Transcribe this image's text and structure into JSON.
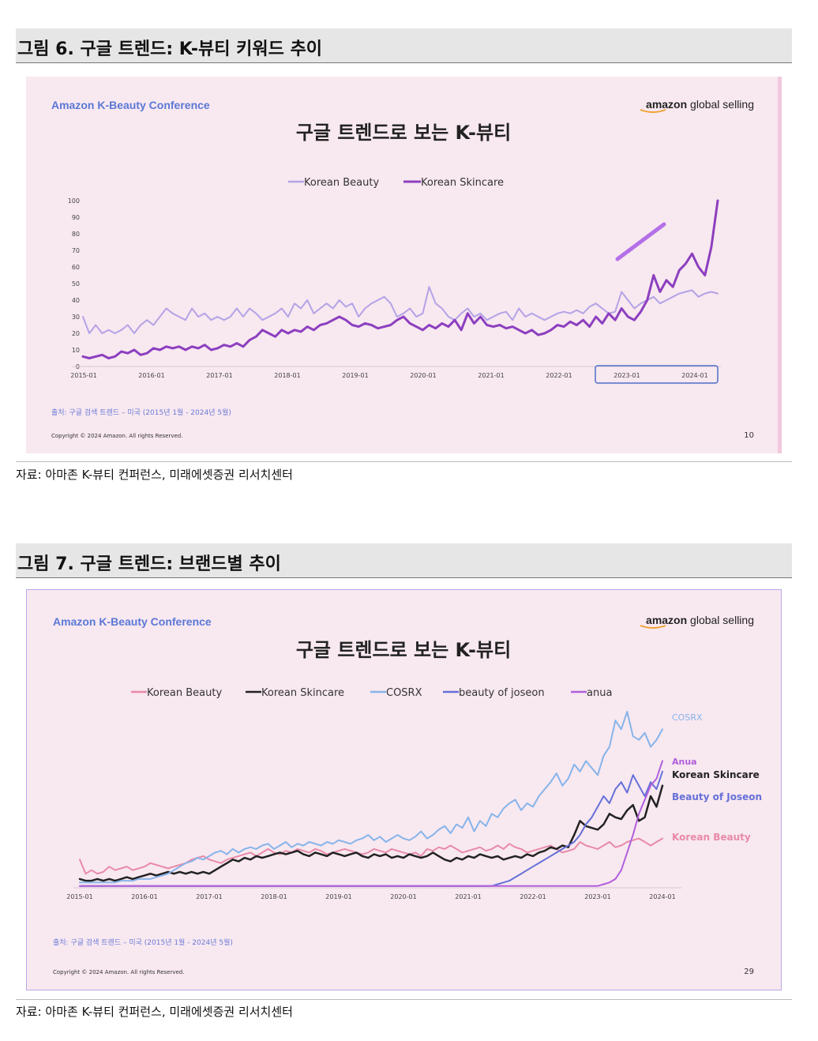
{
  "figures": [
    {
      "caption": "그림 6. 구글 트렌드: K-뷰티 키워드 추이",
      "source": "자료: 아마존 K-뷰티 컨퍼런스, 미래에셋증권 리서치센터",
      "slide": {
        "conference": "Amazon K-Beauty Conference",
        "logo_bold": "amazon",
        "logo_rest": " global selling",
        "note": "출처: 구글 검색 트렌드 – 미국 (2015년 1월 - 2024년 5월)",
        "copyright": "Copyright © 2024 Amazon. All rights Reserved.",
        "page": "10"
      }
    },
    {
      "caption": "그림 7. 구글 트렌드: 브랜드별 추이",
      "source": "자료: 아마존 K-뷰티 컨퍼런스, 미래에셋증권 리서치센터",
      "slide": {
        "conference": "Amazon K-Beauty Conference",
        "logo_bold": "amazon",
        "logo_rest": " global selling",
        "note": "출처: 구글 검색 트렌드 – 미국 (2015년 1월 - 2024년 5월)",
        "copyright": "Copyright © 2024 Amazon. All rights Reserved.",
        "page": "29",
        "end_labels": [
          "COSRX",
          "Anua",
          "Korean Skincare",
          "Beauty of Joseon",
          "Korean Beauty"
        ]
      }
    }
  ],
  "chart_data": [
    {
      "type": "line",
      "title": "구글 트렌드로 보는 K-뷰티",
      "x_ticks": [
        "2015-01",
        "2016-01",
        "2017-01",
        "2018-01",
        "2019-01",
        "2020-01",
        "2021-01",
        "2022-01",
        "2023-01",
        "2024-01"
      ],
      "ylim": [
        0,
        100
      ],
      "y_ticks": [
        0,
        10,
        20,
        30,
        40,
        50,
        60,
        70,
        80,
        90,
        100
      ],
      "legend_position": "top-center",
      "highlight": "2023-01 to 2024-01",
      "series": [
        {
          "name": "Korean Beauty",
          "color": "#b3a3e6",
          "values": [
            30,
            20,
            25,
            20,
            22,
            20,
            22,
            25,
            20,
            25,
            28,
            25,
            30,
            35,
            32,
            30,
            28,
            35,
            30,
            32,
            28,
            30,
            28,
            30,
            35,
            30,
            35,
            32,
            28,
            30,
            32,
            35,
            30,
            38,
            35,
            40,
            32,
            35,
            38,
            35,
            40,
            36,
            38,
            30,
            35,
            38,
            40,
            42,
            38,
            30,
            32,
            35,
            30,
            32,
            48,
            38,
            35,
            30,
            28,
            32,
            35,
            30,
            32,
            28,
            30,
            32,
            33,
            28,
            35,
            30,
            32,
            30,
            28,
            30,
            32,
            33,
            32,
            34,
            32,
            36,
            38,
            35,
            32,
            33,
            45,
            40,
            35,
            38,
            40,
            42,
            38,
            40,
            42,
            44,
            45,
            46,
            42,
            44,
            45,
            44
          ]
        },
        {
          "name": "Korean Skincare",
          "color": "#8c3fbf",
          "values": [
            6,
            5,
            6,
            7,
            5,
            6,
            9,
            8,
            10,
            7,
            8,
            11,
            10,
            12,
            11,
            12,
            10,
            12,
            11,
            13,
            10,
            11,
            13,
            12,
            14,
            12,
            16,
            18,
            22,
            20,
            18,
            22,
            20,
            22,
            21,
            24,
            22,
            25,
            26,
            28,
            30,
            28,
            25,
            24,
            26,
            25,
            23,
            24,
            25,
            28,
            30,
            26,
            24,
            22,
            25,
            23,
            26,
            24,
            28,
            22,
            32,
            26,
            30,
            25,
            24,
            25,
            23,
            24,
            22,
            20,
            22,
            19,
            20,
            22,
            25,
            24,
            27,
            25,
            28,
            24,
            30,
            26,
            32,
            28,
            35,
            30,
            28,
            33,
            40,
            55,
            45,
            52,
            48,
            58,
            62,
            68,
            60,
            55,
            72,
            100
          ]
        }
      ]
    },
    {
      "type": "line",
      "title": "구글 트렌드로 보는 K-뷰티",
      "x_ticks": [
        "2015-01",
        "2016-01",
        "2017-01",
        "2018-01",
        "2019-01",
        "2020-01",
        "2021-01",
        "2022-01",
        "2023-01",
        "2024-01"
      ],
      "ylim": [
        0,
        100
      ],
      "legend_position": "top-center",
      "series": [
        {
          "name": "Korean Beauty",
          "color": "#e88aa8",
          "values": [
            16,
            8,
            10,
            8,
            9,
            12,
            10,
            11,
            12,
            10,
            11,
            12,
            14,
            13,
            12,
            11,
            12,
            13,
            14,
            16,
            17,
            18,
            16,
            15,
            14,
            16,
            17,
            18,
            19,
            20,
            18,
            20,
            22,
            20,
            19,
            21,
            20,
            22,
            21,
            20,
            22,
            21,
            19,
            20,
            21,
            22,
            21,
            20,
            19,
            20,
            22,
            21,
            20,
            22,
            21,
            20,
            19,
            20,
            18,
            22,
            21,
            23,
            22,
            24,
            22,
            20,
            21,
            22,
            23,
            21,
            22,
            24,
            22,
            25,
            23,
            22,
            20,
            21,
            22,
            23,
            24,
            22,
            20,
            21,
            22,
            26,
            24,
            23,
            22,
            24,
            26,
            23,
            24,
            26,
            27,
            28,
            26,
            24,
            26,
            28
          ]
        },
        {
          "name": "Korean Skincare",
          "color": "#222222",
          "values": [
            5,
            4,
            4,
            5,
            4,
            5,
            4,
            5,
            6,
            5,
            6,
            7,
            8,
            7,
            8,
            9,
            8,
            9,
            8,
            9,
            8,
            9,
            8,
            10,
            12,
            14,
            16,
            15,
            17,
            16,
            18,
            17,
            18,
            19,
            20,
            19,
            20,
            21,
            19,
            18,
            20,
            19,
            18,
            20,
            19,
            18,
            19,
            20,
            18,
            17,
            19,
            18,
            19,
            17,
            18,
            17,
            19,
            18,
            17,
            18,
            20,
            18,
            16,
            15,
            17,
            16,
            18,
            17,
            19,
            18,
            17,
            18,
            16,
            17,
            18,
            17,
            19,
            18,
            20,
            21,
            23,
            22,
            24,
            23,
            30,
            38,
            35,
            34,
            33,
            36,
            42,
            40,
            39,
            44,
            47,
            38,
            40,
            52,
            46,
            58
          ]
        },
        {
          "name": "COSRX",
          "color": "#86b4ea",
          "values": [
            3,
            3,
            3,
            3,
            3,
            3,
            3,
            4,
            4,
            4,
            5,
            5,
            5,
            6,
            7,
            8,
            10,
            12,
            14,
            15,
            17,
            16,
            18,
            20,
            21,
            19,
            22,
            20,
            22,
            23,
            22,
            24,
            25,
            22,
            24,
            26,
            23,
            25,
            24,
            26,
            25,
            24,
            26,
            25,
            27,
            26,
            25,
            27,
            28,
            30,
            27,
            29,
            26,
            28,
            30,
            28,
            27,
            29,
            32,
            28,
            30,
            33,
            35,
            31,
            36,
            34,
            40,
            32,
            38,
            35,
            42,
            40,
            45,
            48,
            50,
            44,
            48,
            46,
            52,
            56,
            60,
            65,
            58,
            62,
            70,
            66,
            72,
            68,
            64,
            75,
            80,
            95,
            90,
            100,
            86,
            84,
            88,
            80,
            84,
            90
          ]
        },
        {
          "name": "beauty of joseon",
          "color": "#6670d8",
          "values": [
            1,
            1,
            1,
            1,
            1,
            1,
            1,
            1,
            1,
            1,
            1,
            1,
            1,
            1,
            1,
            1,
            1,
            1,
            1,
            1,
            1,
            1,
            1,
            1,
            1,
            1,
            1,
            1,
            1,
            1,
            1,
            1,
            1,
            1,
            1,
            1,
            1,
            1,
            1,
            1,
            1,
            1,
            1,
            1,
            1,
            1,
            1,
            1,
            1,
            1,
            1,
            1,
            1,
            1,
            1,
            1,
            1,
            1,
            1,
            1,
            1,
            1,
            1,
            1,
            1,
            1,
            1,
            1,
            1,
            1,
            1,
            2,
            3,
            4,
            6,
            8,
            10,
            12,
            14,
            16,
            18,
            20,
            22,
            24,
            26,
            30,
            36,
            40,
            46,
            52,
            48,
            56,
            60,
            54,
            64,
            58,
            52,
            60,
            56,
            66
          ]
        },
        {
          "name": "anua",
          "color": "#b05fdc",
          "values": [
            1,
            1,
            1,
            1,
            1,
            1,
            1,
            1,
            1,
            1,
            1,
            1,
            1,
            1,
            1,
            1,
            1,
            1,
            1,
            1,
            1,
            1,
            1,
            1,
            1,
            1,
            1,
            1,
            1,
            1,
            1,
            1,
            1,
            1,
            1,
            1,
            1,
            1,
            1,
            1,
            1,
            1,
            1,
            1,
            1,
            1,
            1,
            1,
            1,
            1,
            1,
            1,
            1,
            1,
            1,
            1,
            1,
            1,
            1,
            1,
            1,
            1,
            1,
            1,
            1,
            1,
            1,
            1,
            1,
            1,
            1,
            1,
            1,
            1,
            1,
            1,
            1,
            1,
            1,
            1,
            1,
            1,
            1,
            1,
            1,
            1,
            1,
            1,
            1,
            2,
            3,
            5,
            10,
            20,
            30,
            42,
            50,
            58,
            62,
            72
          ]
        }
      ]
    }
  ]
}
